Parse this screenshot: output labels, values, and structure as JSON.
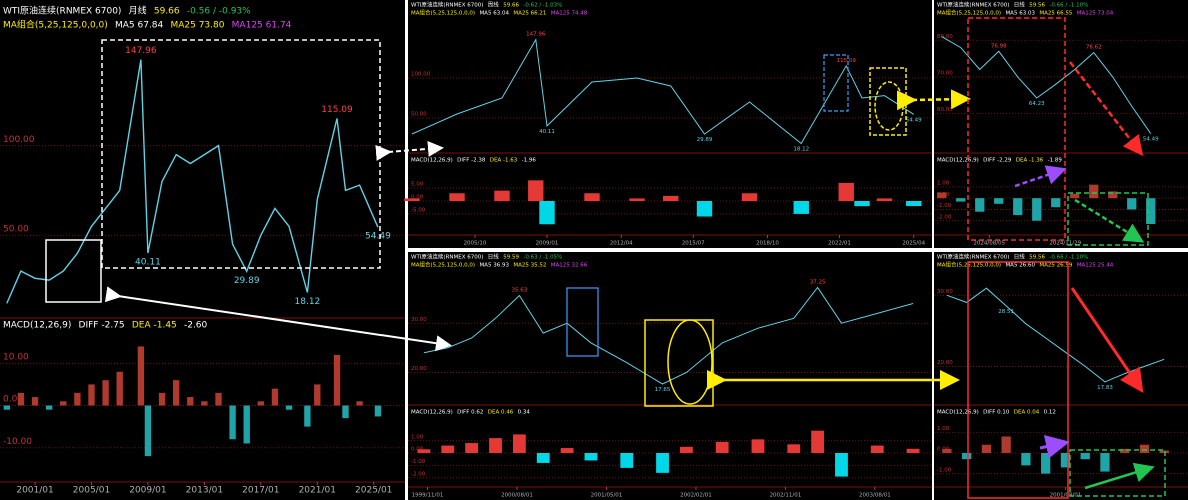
{
  "panels": [
    {
      "title": "WTI原油连续(RNMEX 6700)",
      "period": "月线",
      "price": "59.66",
      "change": "-0.56 / -0.93%",
      "ma_title": "MA组合(5,25,125,0,0,0)",
      "ma5": "MA5 67.84",
      "ma25": "MA25 73.80",
      "ma125": "MA125 61.74",
      "macd_title": "MACD(12,26,9)",
      "diff": "DIFF -2.75",
      "dea": "DEA -1.45",
      "macd_value": "-2.60",
      "color": "#5fd3e6",
      "x": [
        1999,
        2000,
        2001,
        2002,
        2003,
        2004,
        2005,
        2006,
        2007,
        2008.5,
        2009,
        2010,
        2011,
        2012,
        2013,
        2014,
        2015,
        2016,
        2017,
        2018,
        2019,
        2020.3,
        2021,
        2022.4,
        2023,
        2024,
        2025.3
      ],
      "values": [
        12,
        30,
        26,
        25,
        30,
        40,
        55,
        65,
        75,
        147.96,
        40.11,
        80,
        95,
        90,
        95,
        100,
        45,
        29.89,
        50,
        65,
        55,
        18.12,
        70,
        115.09,
        75,
        78,
        54.49
      ],
      "xlim": [
        1998.8,
        2025.8
      ],
      "ylim": [
        10,
        160
      ],
      "yticks": [
        {
          "value": 100,
          "label": "100.00"
        },
        {
          "value": 50,
          "label": "50.00"
        }
      ],
      "xticks": [
        {
          "value": 2001,
          "label": "2001/01"
        },
        {
          "value": 2005,
          "label": "2005/01"
        },
        {
          "value": 2009,
          "label": "2009/01"
        },
        {
          "value": 2013,
          "label": "2013/01"
        },
        {
          "value": 2017,
          "label": "2017/01"
        },
        {
          "value": 2021,
          "label": "2021/01"
        },
        {
          "value": 2025,
          "label": "2025/01"
        }
      ],
      "macd": [
        -1,
        3,
        2,
        -1,
        1,
        3,
        5,
        6,
        8,
        14,
        -12,
        3,
        6,
        2,
        1,
        3,
        -8,
        -9,
        1,
        4,
        -1,
        -5,
        5,
        12,
        -3,
        1,
        -2.6
      ],
      "macd_ylim": [
        -16,
        16
      ],
      "macd_yticks": [
        {
          "value": 10,
          "label": "10.00"
        },
        {
          "value": 0,
          "label": "0.00"
        },
        {
          "value": -10,
          "label": "-10.00"
        }
      ],
      "up_color": "#b03a2e",
      "down_color": "#1fa5a8"
    },
    {
      "title": "WTI原油连续(RNMEX 6700)",
      "period": "周线",
      "price": "59.66",
      "change": "-0.62 / -1.03%",
      "ma_title": "MA组合(5,25,125,0,0,0)",
      "ma5": "MA5 63.04",
      "ma25": "MA25 66.21",
      "ma125": "MA125 74.48",
      "macd_title": "MACD(12,26,9)",
      "diff": "DIFF -2.38",
      "dea": "DEA -1.63",
      "macd_value": "-1.96",
      "color": "#5fd3e6",
      "x": [
        2003,
        2005,
        2007,
        2008.5,
        2009,
        2011,
        2013,
        2014.5,
        2016,
        2018,
        2020.3,
        2022.3,
        2023,
        2024,
        2025.3
      ],
      "values": [
        30,
        55,
        75,
        147.96,
        40.11,
        95,
        100,
        90,
        29.89,
        70,
        18.12,
        115.09,
        75,
        78,
        54.49
      ],
      "xlim": [
        2003,
        2025.8
      ],
      "ylim": [
        10,
        170
      ],
      "yticks": [
        {
          "value": 100,
          "label": "100.00"
        },
        {
          "value": 50,
          "label": "50.00"
        }
      ],
      "xticks": [
        {
          "value": 2005.8,
          "label": "2005/10"
        },
        {
          "value": 2009,
          "label": "2009/01"
        },
        {
          "value": 2012.3,
          "label": "2012/04"
        },
        {
          "value": 2015.5,
          "label": "2015/07"
        },
        {
          "value": 2018.8,
          "label": "2018/10"
        },
        {
          "value": 2022,
          "label": "2022/01"
        },
        {
          "value": 2025.3,
          "label": "2025/04"
        }
      ],
      "macd": [
        1,
        3,
        4,
        8,
        -9,
        3,
        1,
        2,
        -6,
        3,
        -5,
        7,
        -2,
        1,
        -1.96
      ],
      "macd_ylim": [
        -12,
        12
      ],
      "macd_yticks": [
        {
          "value": 5,
          "label": "5.00"
        },
        {
          "value": 0,
          "label": "0.00"
        },
        {
          "value": -5,
          "label": "-5.00"
        }
      ],
      "up_color": "#e53935",
      "down_color": "#00d8e8"
    },
    {
      "title": "WTI原油连续(RNMEX 6700)",
      "period": "日线",
      "price": "59.56",
      "change": "-0.66 / -1.10%",
      "ma_title": "MA组合(5,25,125,0,0,0)",
      "ma5": "MA5 63.03",
      "ma25": "MA25 66.55",
      "ma125": "MA125 73.04",
      "macd_title": "MACD(12,26,9)",
      "diff": "DIFF -2.29",
      "dea": "DEA -1.36",
      "macd_value": "-1.89",
      "color": "#5fd3e6",
      "x": [
        2024.4,
        2024.48,
        2024.56,
        2024.64,
        2024.72,
        2024.8,
        2024.88,
        2024.96,
        2025.04,
        2025.12,
        2025.2,
        2025.28
      ],
      "values": [
        81,
        78,
        72,
        76.98,
        70,
        64.23,
        68,
        72,
        76.62,
        70,
        62,
        54.49
      ],
      "xlim": [
        2024.38,
        2025.42
      ],
      "ylim": [
        50,
        85
      ],
      "yticks": [
        {
          "value": 80,
          "label": "80.00"
        },
        {
          "value": 70,
          "label": "70.00"
        },
        {
          "value": 60,
          "label": "60.00"
        }
      ],
      "xticks": [
        {
          "value": 2024.6,
          "label": "2024/08/05"
        },
        {
          "value": 2024.92,
          "label": "2024/11/29"
        }
      ],
      "macd": [
        0.5,
        -0.3,
        -1.2,
        -0.5,
        -1.5,
        -2,
        -0.8,
        0.4,
        1.2,
        0.6,
        -1,
        -2.29
      ],
      "macd_ylim": [
        -3,
        2.5
      ],
      "macd_yticks": [
        {
          "value": 1,
          "label": "1.00"
        },
        {
          "value": 0,
          "label": "0.00"
        },
        {
          "value": -1,
          "label": "-1.00"
        },
        {
          "value": -2,
          "label": "-2.00"
        }
      ],
      "up_color": "#b03a2e",
      "down_color": "#1fa5a8"
    },
    {
      "title": "WTI原油连续(RNMEX 6700)",
      "period": "日线",
      "price": "59.59",
      "change": "-0.63 / -1.05%",
      "ma_title": "MA组合(5,25,125,0,0,0)",
      "ma5": "MA5 36.93",
      "ma25": "MA25 35.52",
      "ma125": "MA125 32.66",
      "macd_title": "MACD(12,26,9)",
      "diff": "DIFF 0.62",
      "dea": "DEA 0.46",
      "macd_value": "0.34",
      "color": "#5fd3e6",
      "x": [
        1999.8,
        2000.0,
        2000.2,
        2000.4,
        2000.6,
        2000.8,
        2001.0,
        2001.2,
        2001.5,
        2001.8,
        2002.0,
        2002.3,
        2002.6,
        2002.9,
        2003.1,
        2003.3,
        2003.6,
        2003.9
      ],
      "values": [
        24,
        25,
        27,
        31,
        35.63,
        28,
        30,
        26,
        22,
        17.65,
        20,
        26,
        29,
        31,
        37.25,
        30,
        32,
        34
      ],
      "xlim": [
        1999.7,
        2004
      ],
      "ylim": [
        14,
        40
      ],
      "yticks": [
        {
          "value": 30,
          "label": "30.00"
        },
        {
          "value": 20,
          "label": "20.00"
        }
      ],
      "xticks": [
        {
          "value": 1999.83,
          "label": "1999/11/01"
        },
        {
          "value": 2000.58,
          "label": "2000/08/01"
        },
        {
          "value": 2001.33,
          "label": "2001/05/01"
        },
        {
          "value": 2002.08,
          "label": "2002/02/01"
        },
        {
          "value": 2002.83,
          "label": "2002/11/01"
        },
        {
          "value": 2003.58,
          "label": "2003/08/01"
        }
      ],
      "macd": [
        0.3,
        0.6,
        0.8,
        1.2,
        1.5,
        -0.8,
        0.4,
        -0.6,
        -1.2,
        -1.6,
        0.5,
        0.9,
        1.1,
        0.7,
        1.8,
        -1.9,
        0.6,
        0.34
      ],
      "macd_ylim": [
        -2.5,
        2.5
      ],
      "macd_yticks": [
        {
          "value": 1,
          "label": "1.00"
        },
        {
          "value": 0,
          "label": "0.00"
        },
        {
          "value": -1,
          "label": "-1.00"
        },
        {
          "value": -2,
          "label": "-2.00"
        }
      ],
      "up_color": "#e53935",
      "down_color": "#00d8e8"
    },
    {
      "title": "WTI原油连续(RNMEX 6700)",
      "period": "日线",
      "price": "59.56",
      "change": "-0.66 / -1.10%",
      "ma_title": "MA组合(5,25,125,0,0,0)",
      "ma5": "MA5 26.60",
      "ma25": "MA25 26.59",
      "ma125": "MA125 25.44",
      "macd_title": "MACD(12,26,9)",
      "diff": "DIFF 0.10",
      "dea": "DEA 0.04",
      "macd_value": "0.12",
      "color": "#5fd3e6",
      "x": [
        2001.0,
        2001.1,
        2001.2,
        2001.3,
        2001.4,
        2001.5,
        2001.6,
        2001.7,
        2001.8,
        2001.9,
        2002.0,
        2002.1
      ],
      "values": [
        30,
        29,
        31,
        28.51,
        26,
        24,
        22,
        20,
        17.83,
        19,
        20,
        21
      ],
      "xlim": [
        2000.95,
        2002.2
      ],
      "ylim": [
        15,
        33
      ],
      "yticks": [
        {
          "value": 30,
          "label": "30.00"
        },
        {
          "value": 20,
          "label": "20.00"
        }
      ],
      "xticks": [
        {
          "value": 2001.6,
          "label": "2001/08/01"
        }
      ],
      "macd": [
        0.2,
        -0.3,
        0.4,
        0.8,
        -0.6,
        -1.0,
        -0.7,
        -0.3,
        -0.9,
        0.2,
        0.4,
        0.12
      ],
      "macd_ylim": [
        -1.5,
        1.5
      ],
      "macd_yticks": [
        {
          "value": 1,
          "label": "1.00"
        },
        {
          "value": 0,
          "label": "0.00"
        },
        {
          "value": -1,
          "label": "-1.00"
        }
      ],
      "up_color": "#b03a2e",
      "down_color": "#1fa5a8"
    }
  ]
}
